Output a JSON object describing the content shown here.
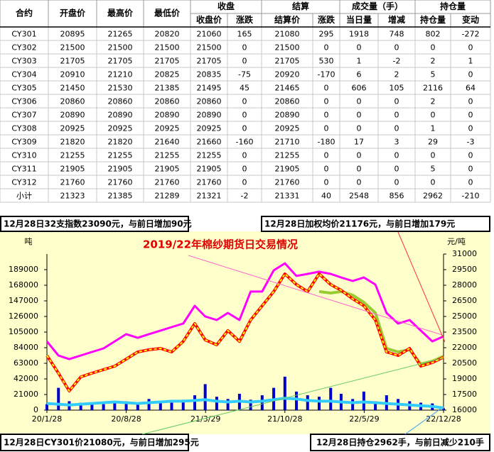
{
  "table": {
    "header_top": [
      "合约",
      "开盘价",
      "最高价",
      "最低价",
      "收盘",
      "结算",
      "成交量（手）",
      "持仓量"
    ],
    "header_bottom": [
      "收盘价",
      "涨跌",
      "结算价",
      "涨跌",
      "当日量",
      "增减",
      "持仓量",
      "变动"
    ],
    "rows": [
      [
        "CY301",
        20895,
        21265,
        20820,
        21060,
        165,
        21080,
        295,
        1918,
        748,
        802,
        -272
      ],
      [
        "CY302",
        21500,
        21500,
        21500,
        21500,
        0,
        21500,
        0,
        0,
        0,
        0,
        0
      ],
      [
        "CY303",
        21705,
        21705,
        21705,
        21705,
        0,
        21705,
        530,
        1,
        -2,
        2,
        1
      ],
      [
        "CY304",
        20910,
        21210,
        20825,
        20835,
        -75,
        20920,
        -170,
        6,
        2,
        5,
        0
      ],
      [
        "CY305",
        21450,
        21530,
        21385,
        21495,
        45,
        21465,
        0,
        606,
        105,
        2116,
        64
      ],
      [
        "CY306",
        20860,
        20860,
        20860,
        20860,
        0,
        20860,
        0,
        0,
        0,
        2,
        0
      ],
      [
        "CY307",
        20890,
        20890,
        20890,
        20890,
        0,
        20890,
        0,
        0,
        0,
        0,
        0
      ],
      [
        "CY308",
        20925,
        20925,
        20925,
        20925,
        0,
        20925,
        0,
        0,
        0,
        1,
        0
      ],
      [
        "CY309",
        21820,
        21820,
        21640,
        21660,
        -160,
        21710,
        -180,
        17,
        3,
        29,
        -3
      ],
      [
        "CY310",
        21255,
        21255,
        21255,
        21255,
        0,
        21255,
        0,
        0,
        0,
        0,
        0
      ],
      [
        "CY311",
        21905,
        21905,
        21905,
        21905,
        0,
        21905,
        0,
        0,
        0,
        5,
        0
      ],
      [
        "CY312",
        21760,
        21760,
        21760,
        21760,
        0,
        21760,
        0,
        0,
        0,
        0,
        0
      ],
      [
        "小计",
        21323,
        21385,
        21289,
        21321,
        -2,
        21331,
        40,
        2548,
        856,
        2962,
        -210
      ]
    ]
  },
  "callouts": {
    "index": "12月28日32支指数23090元，与前日增加90元",
    "weighted": "12月28日加权均价21176元，与前日增加179元",
    "cy301": "12月28日CY301价21080元，与前日增加295元",
    "open_interest": "12月28日持仓2962手，与前日减少210手"
  },
  "chart_data": {
    "type": "line",
    "title": "2019/22年棉纱期货日交易情况",
    "ylabel": "吨",
    "y2label": "元/吨",
    "x": [
      "2020-01-28",
      "2020-02-28",
      "2020-03-28",
      "2020-04-28",
      "2020-05-28",
      "2020-06-28",
      "2020-07-28",
      "2020-08-28",
      "2020-09-28",
      "2020-10-28",
      "2020-11-28",
      "2020-12-28",
      "2021-01-28",
      "2021-02-28",
      "2021-03-28",
      "2021-04-28",
      "2021-05-28",
      "2021-06-28",
      "2021-07-28",
      "2021-08-28",
      "2021-09-28",
      "2021-10-28",
      "2021-11-28",
      "2021-12-28",
      "2022-01-28",
      "2022-02-28",
      "2022-03-28",
      "2022-04-28",
      "2022-05-28",
      "2022-06-28",
      "2022-07-28",
      "2022-08-28",
      "2022-09-28",
      "2022-10-28",
      "2022-11-28",
      "2022-12-28"
    ],
    "xlim": [
      "2020-01-28",
      "2022-12-28"
    ],
    "xticks": [
      {
        "value": "2020-01-28",
        "label": "20/1/28"
      },
      {
        "value": "2020-08-28",
        "label": "20/8/28"
      },
      {
        "value": "2021-03-29",
        "label": "21/3/29"
      },
      {
        "value": "2021-10-28",
        "label": "21/10/28"
      },
      {
        "value": "2022-05-29",
        "label": "22/5/29"
      },
      {
        "value": "2022-12-28",
        "label": "22/12/28"
      }
    ],
    "ylim": [
      0,
      210000
    ],
    "yticks": [
      0,
      21000,
      42000,
      63000,
      84000,
      105000,
      126000,
      147000,
      168000,
      189000
    ],
    "y2lim": [
      16000,
      31000
    ],
    "y2ticks": [
      16000,
      17500,
      19000,
      20500,
      22000,
      23500,
      25000,
      26500,
      28000,
      29500,
      31000
    ],
    "background": "#ffffcc",
    "series": [
      {
        "type": "bar",
        "color": "#0000cc",
        "values": [
          8000,
          30000,
          12000,
          10000,
          9000,
          8000,
          10000,
          12000,
          9000,
          15000,
          12000,
          10000,
          14000,
          20000,
          35000,
          18000,
          15000,
          22000,
          14000,
          20000,
          30000,
          45000,
          25000,
          20000,
          18000,
          30000,
          22000,
          15000,
          25000,
          12000,
          20000,
          15000,
          12000,
          10000,
          9000,
          2548
        ]
      },
      {
        "type": "line",
        "color": "#33ccff",
        "width": 4,
        "values": [
          9000,
          8000,
          7000,
          8000,
          9000,
          10000,
          11000,
          10000,
          9000,
          10000,
          11000,
          12000,
          12000,
          13000,
          14000,
          12000,
          11000,
          12000,
          11000,
          12000,
          14000,
          16000,
          15000,
          13000,
          12000,
          12000,
          11000,
          10000,
          11000,
          10000,
          9000,
          8000,
          7000,
          6000,
          5000,
          2962
        ]
      },
      {
        "type": "line",
        "axis": "y2",
        "color": "#ff00ff",
        "width": 3,
        "values": [
          22610,
          21250,
          20900,
          21250,
          21590,
          21930,
          22610,
          23300,
          22950,
          23300,
          23640,
          23980,
          24320,
          26020,
          25000,
          24660,
          25340,
          24660,
          27390,
          27390,
          29430,
          30110,
          28890,
          29090,
          29300,
          29090,
          28750,
          28410,
          28750,
          28070,
          25340,
          24320,
          24660,
          23640,
          22610,
          23090
        ]
      },
      {
        "type": "line",
        "axis": "y2",
        "color": "#99cc33",
        "width": 4,
        "values": [
          null,
          null,
          null,
          null,
          null,
          null,
          null,
          null,
          null,
          null,
          null,
          null,
          null,
          null,
          null,
          null,
          null,
          null,
          null,
          null,
          null,
          null,
          null,
          null,
          27390,
          27250,
          27390,
          27050,
          26360,
          25340,
          21930,
          21590,
          21800,
          20430,
          20700,
          21176
        ]
      },
      {
        "type": "line",
        "axis": "y2",
        "color": "#ff0000",
        "dash_color": "#ffff00",
        "width": 4,
        "values": [
          21250,
          19550,
          17840,
          19200,
          19550,
          19890,
          20230,
          20910,
          21590,
          21800,
          21930,
          21590,
          22610,
          24320,
          22750,
          22270,
          23640,
          22610,
          24660,
          26020,
          27390,
          29090,
          28070,
          27390,
          29090,
          28070,
          27520,
          26700,
          26020,
          24660,
          21590,
          21250,
          21930,
          20230,
          20570,
          21080
        ]
      }
    ]
  }
}
